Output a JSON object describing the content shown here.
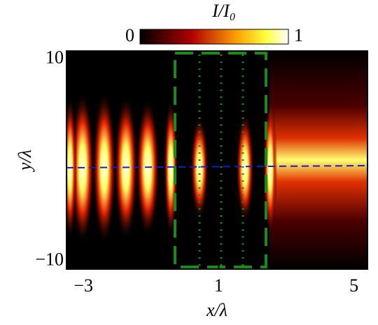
{
  "chart_data": {
    "type": "heatmap",
    "colorbar_label": "I/I₀",
    "xlabel": "x/λ",
    "ylabel": "y/λ",
    "xlim": [
      -3.5,
      5.4
    ],
    "ylim": [
      -10.8,
      10.8
    ],
    "xticks": [
      {
        "value": -3,
        "label": "−3"
      },
      1,
      5
    ],
    "yticks": [
      {
        "value": -10,
        "label": "−10"
      },
      10
    ],
    "clim": [
      0,
      1
    ],
    "cticks": [
      0,
      1
    ],
    "colormap": "hot"
  }
}
